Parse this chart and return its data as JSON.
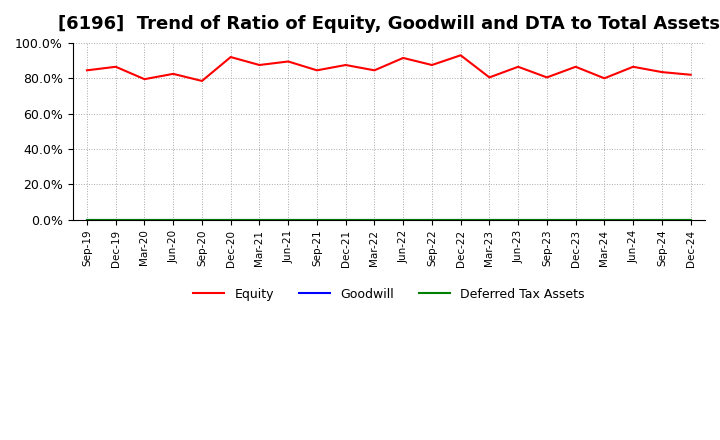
{
  "title": "[6196]  Trend of Ratio of Equity, Goodwill and DTA to Total Assets",
  "labels": [
    "Sep-19",
    "Dec-19",
    "Mar-20",
    "Jun-20",
    "Sep-20",
    "Dec-20",
    "Mar-21",
    "Jun-21",
    "Sep-21",
    "Dec-21",
    "Mar-22",
    "Jun-22",
    "Sep-22",
    "Dec-22",
    "Mar-23",
    "Jun-23",
    "Sep-23",
    "Dec-23",
    "Mar-24",
    "Jun-24",
    "Sep-24",
    "Dec-24"
  ],
  "equity": [
    84.5,
    86.5,
    79.5,
    82.5,
    78.5,
    92.0,
    87.5,
    89.5,
    84.5,
    87.5,
    84.5,
    91.5,
    87.5,
    93.0,
    80.5,
    86.5,
    80.5,
    86.5,
    80.0,
    86.5,
    83.5,
    82.0
  ],
  "goodwill": [
    0.0,
    0.0,
    0.0,
    0.0,
    0.0,
    0.0,
    0.0,
    0.0,
    0.0,
    0.0,
    0.0,
    0.0,
    0.0,
    0.0,
    0.0,
    0.0,
    0.0,
    0.0,
    0.0,
    0.0,
    0.0,
    0.0
  ],
  "dta": [
    0.0,
    0.0,
    0.0,
    0.0,
    0.0,
    0.0,
    0.0,
    0.0,
    0.0,
    0.0,
    0.0,
    0.0,
    0.0,
    0.0,
    0.0,
    0.0,
    0.0,
    0.0,
    0.0,
    0.0,
    0.0,
    0.0
  ],
  "equity_color": "#ff0000",
  "goodwill_color": "#0000ff",
  "dta_color": "#008000",
  "ylim": [
    0,
    100
  ],
  "yticks": [
    0,
    20,
    40,
    60,
    80,
    100
  ],
  "ytick_labels": [
    "0.0%",
    "20.0%",
    "40.0%",
    "60.0%",
    "80.0%",
    "100.0%"
  ],
  "background_color": "#ffffff",
  "grid_color": "#aaaaaa",
  "title_fontsize": 13,
  "legend_labels": [
    "Equity",
    "Goodwill",
    "Deferred Tax Assets"
  ]
}
